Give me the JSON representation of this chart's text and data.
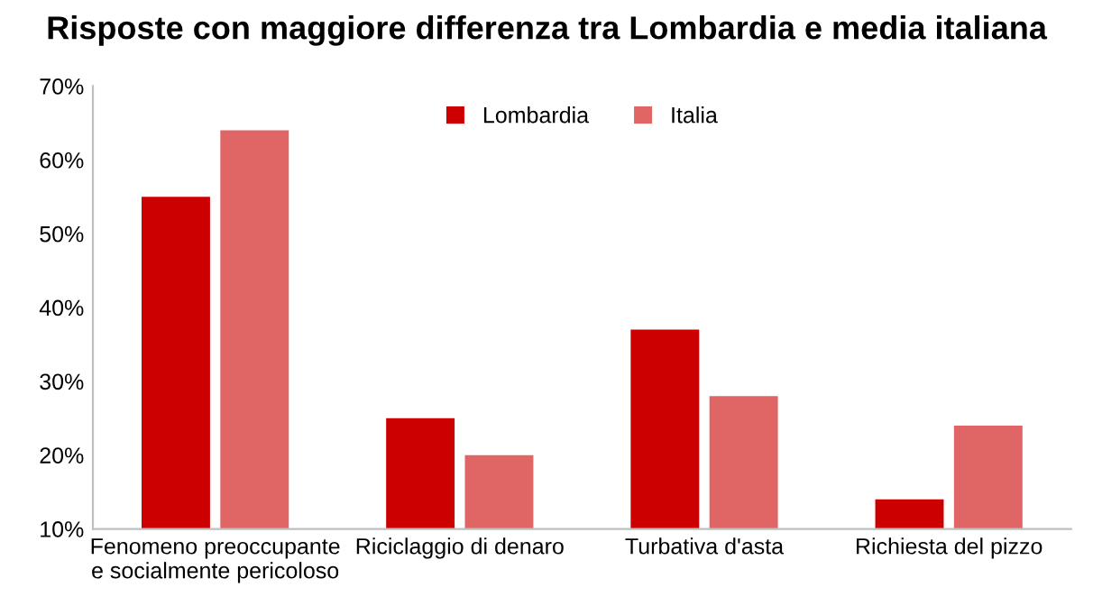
{
  "chart_data": {
    "type": "bar",
    "title": "Risposte con maggiore differenza tra Lombardia e media italiana",
    "categories": [
      "Fenomeno preoccupante\ne socialmente pericoloso",
      "Riciclaggio di denaro",
      "Turbativa d'asta",
      "Richiesta del pizzo"
    ],
    "series": [
      {
        "name": "Lombardia",
        "color": "#cc0000",
        "values": [
          55,
          25,
          37,
          14
        ]
      },
      {
        "name": "Italia",
        "color": "#e06666",
        "values": [
          64,
          20,
          28,
          24
        ]
      }
    ],
    "ylim": [
      10,
      70
    ],
    "yticks": [
      {
        "value": 10,
        "label": "10%"
      },
      {
        "value": 20,
        "label": "20%"
      },
      {
        "value": 30,
        "label": "30%"
      },
      {
        "value": 40,
        "label": "40%"
      },
      {
        "value": 50,
        "label": "50%"
      },
      {
        "value": 60,
        "label": "60%"
      },
      {
        "value": 70,
        "label": "70%"
      }
    ],
    "grid": false,
    "legend": "top"
  }
}
